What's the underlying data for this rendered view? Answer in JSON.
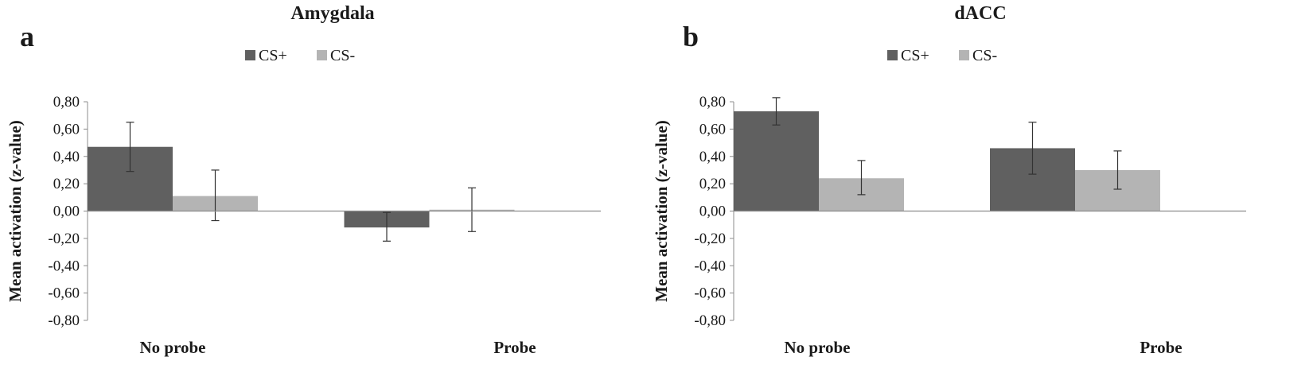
{
  "colors": {
    "cs_plus": "#606060",
    "cs_minus": "#b4b4b4",
    "axis": "#8c8c8c",
    "text": "#1a1a1a"
  },
  "chart_data": [
    {
      "panel_letter": "a",
      "type": "bar",
      "title": "Amygdala",
      "xlabel": "",
      "ylabel": "Mean activation (z-value)",
      "ylim": [
        -0.8,
        0.8
      ],
      "yticks": [
        "0,80",
        "0,60",
        "0,40",
        "0,20",
        "0,00",
        "-0,20",
        "-0,40",
        "-0,60",
        "-0,80"
      ],
      "categories": [
        "No probe",
        "Probe"
      ],
      "legend_position": "top",
      "grid": false,
      "series": [
        {
          "name": "CS+",
          "values": [
            0.47,
            -0.12
          ],
          "error_low": [
            0.29,
            -0.22
          ],
          "error_high": [
            0.65,
            -0.01
          ]
        },
        {
          "name": "CS-",
          "values": [
            0.11,
            0.01
          ],
          "error_low": [
            -0.07,
            -0.15
          ],
          "error_high": [
            0.3,
            0.17
          ]
        }
      ]
    },
    {
      "panel_letter": "b",
      "type": "bar",
      "title": "dACC",
      "xlabel": "",
      "ylabel": "Mean activation (z-value)",
      "ylim": [
        -0.8,
        0.8
      ],
      "yticks": [
        "0,80",
        "0,60",
        "0,40",
        "0,20",
        "0,00",
        "-0,20",
        "-0,40",
        "-0,60",
        "-0,80"
      ],
      "categories": [
        "No probe",
        "Probe"
      ],
      "legend_position": "top",
      "grid": false,
      "series": [
        {
          "name": "CS+",
          "values": [
            0.73,
            0.46
          ],
          "error_low": [
            0.63,
            0.27
          ],
          "error_high": [
            0.83,
            0.65
          ]
        },
        {
          "name": "CS-",
          "values": [
            0.24,
            0.3
          ],
          "error_low": [
            0.12,
            0.16
          ],
          "error_high": [
            0.37,
            0.44
          ]
        }
      ]
    }
  ]
}
